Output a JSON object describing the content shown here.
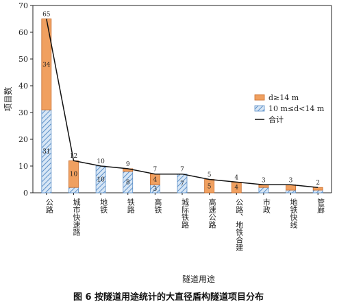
{
  "figure": {
    "caption": "图 6 按隧道用途统计的大直径盾构隧道项目分布"
  },
  "colors": {
    "upper": "#f0a060",
    "lower": "#a8c8e8",
    "line": "#111111"
  },
  "chart_data": {
    "type": "bar",
    "stacked": true,
    "categories": [
      "公路",
      "城市快速路",
      "地铁",
      "铁路",
      "高铁",
      "城际铁路",
      "高速公路",
      "公路、地铁合建",
      "市政",
      "地铁快线",
      "管廊"
    ],
    "series": [
      {
        "name": "10 m≤d<14 m",
        "values": [
          31,
          2,
          10,
          8,
          3,
          7,
          0,
          0,
          2,
          1,
          1
        ]
      },
      {
        "name": "d≥14 m",
        "values": [
          34,
          10,
          0,
          1,
          4,
          0,
          5,
          4,
          1,
          2,
          1
        ]
      }
    ],
    "totals_line": {
      "name": "合计",
      "values": [
        65,
        12,
        10,
        9,
        7,
        7,
        5,
        4,
        3,
        3,
        2
      ]
    },
    "xlabel": "隧道用途",
    "ylabel": "项目数",
    "ylim": [
      0,
      70
    ],
    "yticks": [
      0,
      10,
      20,
      30,
      40,
      50,
      60,
      70
    ],
    "grid": false,
    "legend_position": "right",
    "legend": [
      "d≥14 m",
      "10 m≤d<14 m",
      "合计"
    ]
  }
}
